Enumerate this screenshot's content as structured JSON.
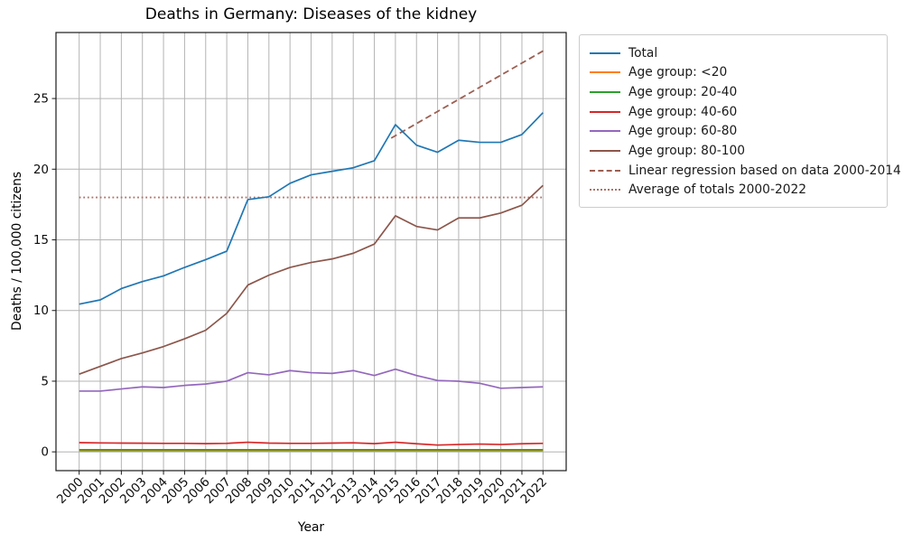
{
  "chart_data": {
    "type": "line",
    "title": "Deaths in Germany: Diseases of the kidney",
    "xlabel": "Year",
    "ylabel": "Deaths / 100,000 citizens",
    "x": [
      2000,
      2001,
      2002,
      2003,
      2004,
      2005,
      2006,
      2007,
      2008,
      2009,
      2010,
      2011,
      2012,
      2013,
      2014,
      2015,
      2016,
      2017,
      2018,
      2019,
      2020,
      2021,
      2022
    ],
    "xlim": [
      1998.9,
      2023.1
    ],
    "ylim": [
      -1.33,
      29.67
    ],
    "yticks": [
      0,
      5,
      10,
      15,
      20,
      25
    ],
    "grid": true,
    "grid_color": "#b4b4b4",
    "legend_position": "upper right, outside axes",
    "series": [
      {
        "id": "total",
        "name": "Total",
        "color": "#1f77b4",
        "style": "solid",
        "values": [
          10.45,
          10.75,
          11.55,
          12.05,
          12.45,
          13.05,
          13.6,
          14.2,
          17.85,
          18.05,
          19.0,
          19.6,
          19.85,
          20.1,
          20.6,
          23.15,
          21.7,
          21.2,
          22.05,
          21.9,
          21.9,
          22.45,
          24.0
        ]
      },
      {
        "id": "age-under-20",
        "name": "Age group: <20",
        "color": "#ff7f0e",
        "style": "solid",
        "values": [
          0.06,
          0.06,
          0.06,
          0.06,
          0.06,
          0.06,
          0.06,
          0.06,
          0.06,
          0.06,
          0.06,
          0.06,
          0.06,
          0.06,
          0.06,
          0.06,
          0.06,
          0.06,
          0.06,
          0.06,
          0.06,
          0.06,
          0.06
        ]
      },
      {
        "id": "age-20-40",
        "name": "Age group: 20-40",
        "color": "#2ca02c",
        "style": "solid",
        "values": [
          0.15,
          0.15,
          0.15,
          0.15,
          0.15,
          0.15,
          0.15,
          0.15,
          0.15,
          0.15,
          0.15,
          0.15,
          0.15,
          0.15,
          0.15,
          0.15,
          0.15,
          0.15,
          0.15,
          0.15,
          0.15,
          0.15,
          0.15
        ]
      },
      {
        "id": "age-40-60",
        "name": "Age group: 40-60",
        "color": "#d62728",
        "style": "solid",
        "values": [
          0.65,
          0.63,
          0.62,
          0.61,
          0.6,
          0.6,
          0.58,
          0.6,
          0.68,
          0.62,
          0.6,
          0.6,
          0.62,
          0.64,
          0.58,
          0.68,
          0.57,
          0.48,
          0.52,
          0.55,
          0.52,
          0.57,
          0.6
        ]
      },
      {
        "id": "age-60-80",
        "name": "Age group: 60-80",
        "color": "#9467bd",
        "style": "solid",
        "values": [
          4.3,
          4.3,
          4.45,
          4.6,
          4.55,
          4.7,
          4.8,
          5.0,
          5.6,
          5.45,
          5.75,
          5.6,
          5.55,
          5.75,
          5.4,
          5.85,
          5.4,
          5.05,
          5.0,
          4.85,
          4.5,
          4.55,
          4.6
        ]
      },
      {
        "id": "age-80-100",
        "name": "Age group: 80-100",
        "color": "#8c564b",
        "style": "solid",
        "values": [
          5.5,
          6.05,
          6.6,
          7.0,
          7.45,
          8.0,
          8.6,
          9.8,
          11.8,
          12.5,
          13.05,
          13.4,
          13.65,
          14.05,
          14.7,
          16.7,
          15.95,
          15.7,
          16.55,
          16.55,
          16.9,
          17.45,
          18.85
        ]
      },
      {
        "id": "linear-regression",
        "name": "Linear regression based on data 2000-2014",
        "color": "#9c5f52",
        "style": "dashed",
        "x": [
          2014.8,
          2022.1
        ],
        "values": [
          22.2,
          28.45
        ]
      },
      {
        "id": "average-of-totals",
        "name": "Average of totals 2000-2022",
        "color": "#ad7268",
        "style": "dotted",
        "x": [
          2000,
          2022
        ],
        "values": [
          18.0,
          18.0
        ]
      }
    ]
  }
}
